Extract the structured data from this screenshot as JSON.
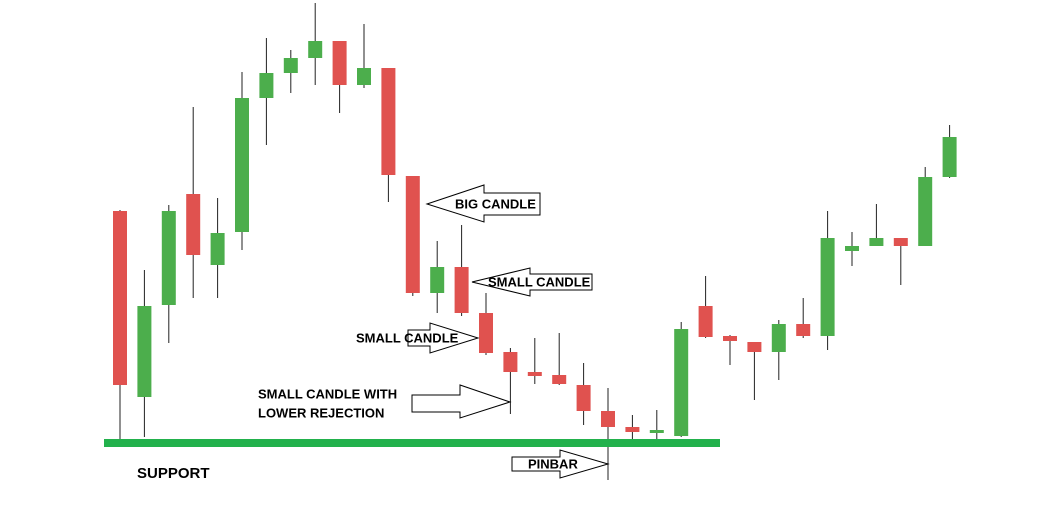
{
  "chart_data": {
    "type": "candlestick",
    "ylim": [
      0,
      531
    ],
    "colors": {
      "up": "#4cae4c",
      "down": "#e0524f",
      "support": "#22b14c"
    },
    "open": [
      320,
      134,
      226,
      337,
      266,
      299,
      433,
      458,
      473,
      490,
      446,
      463,
      355,
      238,
      264,
      218,
      179,
      159,
      156,
      146,
      120,
      104,
      99,
      95,
      225,
      195,
      189,
      179,
      207,
      195,
      280,
      285,
      293,
      285,
      354
    ],
    "high": [
      321,
      261,
      326,
      424,
      333,
      459,
      493,
      481,
      528,
      490,
      507,
      463,
      355,
      290,
      306,
      238,
      183,
      193,
      198,
      168,
      143,
      116,
      121,
      209,
      255,
      196,
      189,
      211,
      233,
      320,
      299,
      327,
      293,
      364,
      406
    ],
    "low": [
      91,
      94,
      188,
      233,
      233,
      281,
      386,
      438,
      446,
      418,
      443,
      329,
      235,
      218,
      215,
      176,
      117,
      147,
      146,
      106,
      51,
      91,
      91,
      94,
      193,
      166,
      131,
      151,
      193,
      181,
      265,
      285,
      246,
      285,
      353
    ],
    "close": [
      146,
      225,
      320,
      276,
      298,
      433,
      458,
      473,
      490,
      446,
      463,
      356,
      238,
      264,
      218,
      178,
      159,
      155,
      147,
      120,
      104,
      99,
      101,
      202,
      194,
      190,
      179,
      207,
      195,
      293,
      285,
      293,
      285,
      354,
      394
    ],
    "support": {
      "label": "SUPPORT",
      "value": 88
    },
    "annotations": [
      {
        "text": "BIG CANDLE"
      },
      {
        "text": "SMALL CANDLE"
      },
      {
        "text": "SMALL CANDLE"
      },
      {
        "lines": [
          "SMALL CANDLE WITH",
          "LOWER REJECTION"
        ]
      },
      {
        "text": "PINBAR"
      }
    ]
  }
}
